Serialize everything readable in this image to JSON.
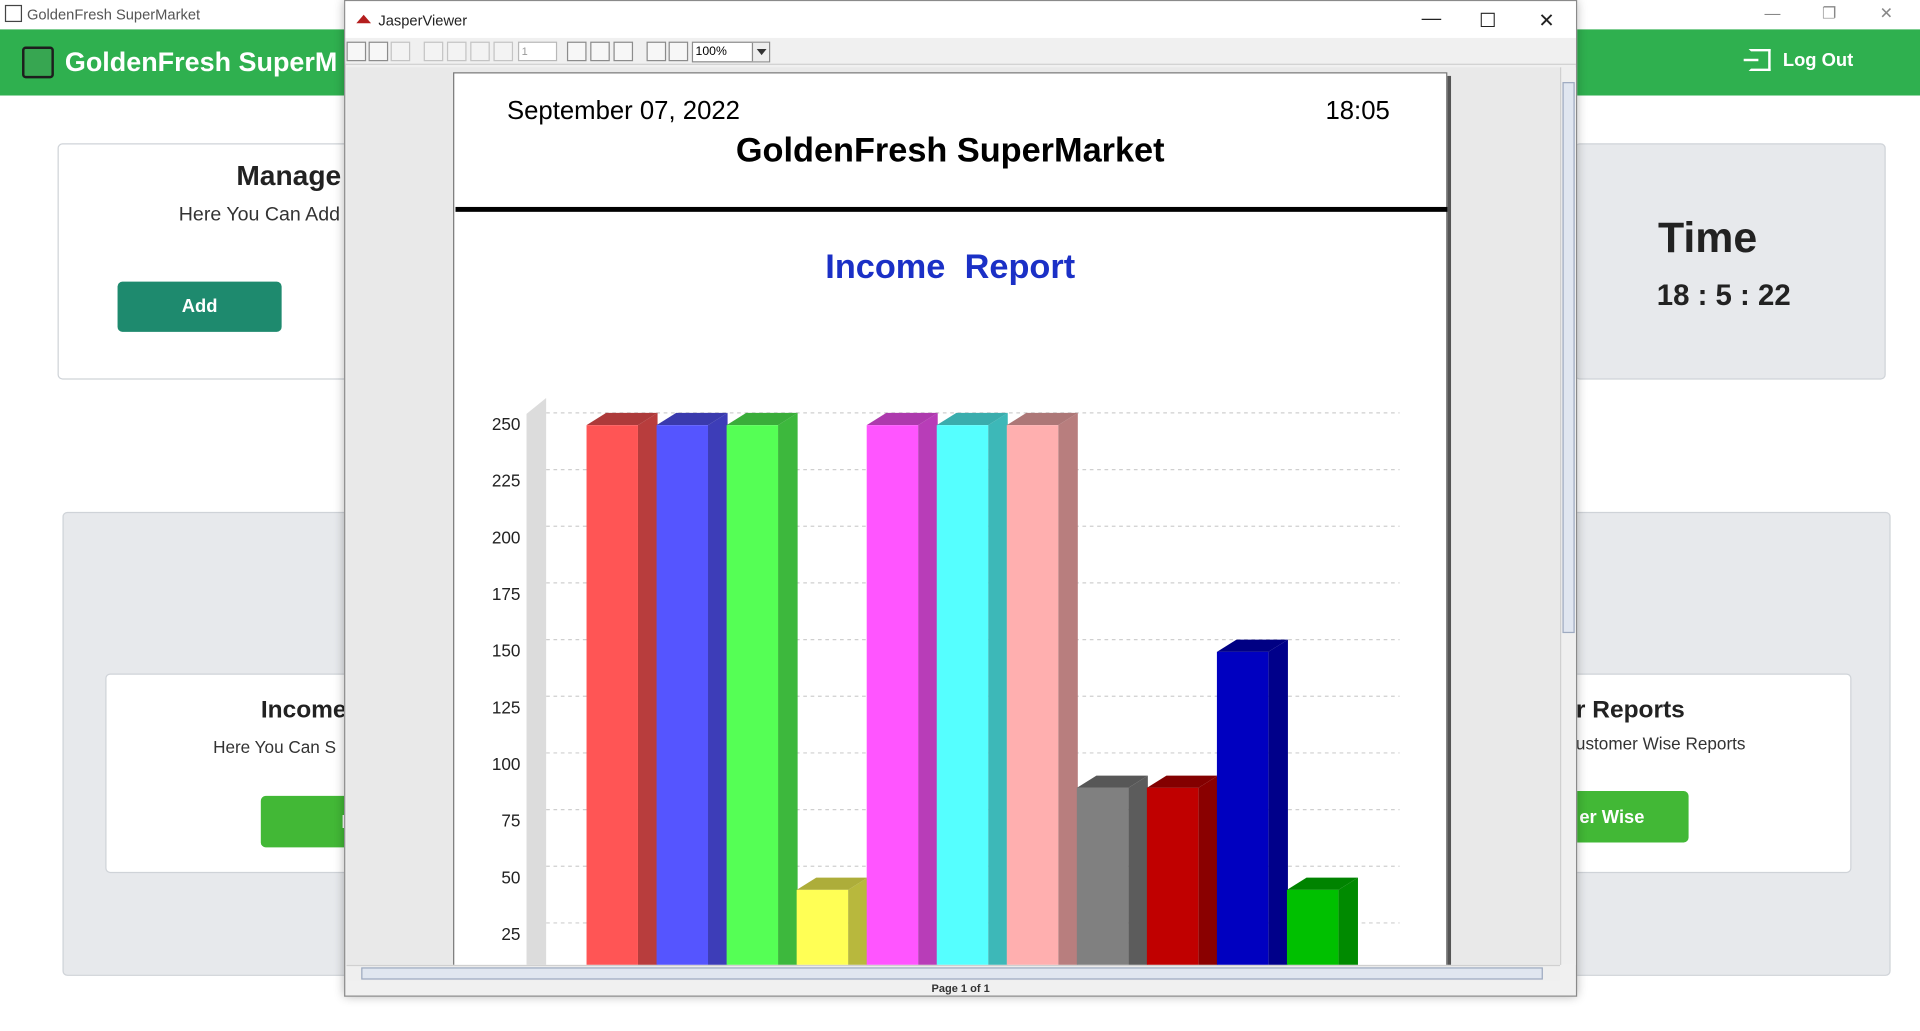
{
  "app": {
    "title": "GoldenFresh SuperMarket",
    "brand": "GoldenFresh SuperM",
    "logout_label": "Log Out",
    "colors": {
      "header": "#2fb04f",
      "add_button": "#1e8a6e",
      "green_button": "#42b836"
    }
  },
  "manage_card": {
    "title": "Manage",
    "subtitle": "Here You Can Add",
    "button_label": "Add"
  },
  "time_card": {
    "title": "Time",
    "value": "18 : 5 : 22"
  },
  "income_card": {
    "title": "Income",
    "subtitle": "Here You Can S",
    "button_label": "I"
  },
  "reports_card": {
    "title": "r Reports",
    "subtitle": "ustomer Wise Reports",
    "button_label": "er Wise"
  },
  "viewer": {
    "title": "JasperViewer",
    "page_number": "1",
    "zoom": "100%",
    "status": "Page 1 of 1",
    "controls": {
      "minimize": "—",
      "maximize": "☐",
      "close": "✕"
    }
  },
  "report": {
    "date": "September 07, 2022",
    "time": "18:05",
    "company": "GoldenFresh SuperMarket",
    "title": "Income  Report"
  },
  "chart_data": {
    "type": "bar",
    "style": "3d",
    "title": "",
    "xlabel": "",
    "ylabel": "",
    "ylim": [
      0,
      262
    ],
    "yticks": [
      25,
      50,
      75,
      100,
      125,
      150,
      175,
      200,
      225,
      250
    ],
    "grid": true,
    "values": [
      250,
      250,
      250,
      45,
      250,
      250,
      250,
      90,
      90,
      150,
      45
    ],
    "colors": [
      "#ff5555",
      "#5555ff",
      "#55ff55",
      "#ffff55",
      "#ff55ff",
      "#55ffff",
      "#ffafaf",
      "#808080",
      "#c00000",
      "#0000c0",
      "#00c000"
    ]
  }
}
